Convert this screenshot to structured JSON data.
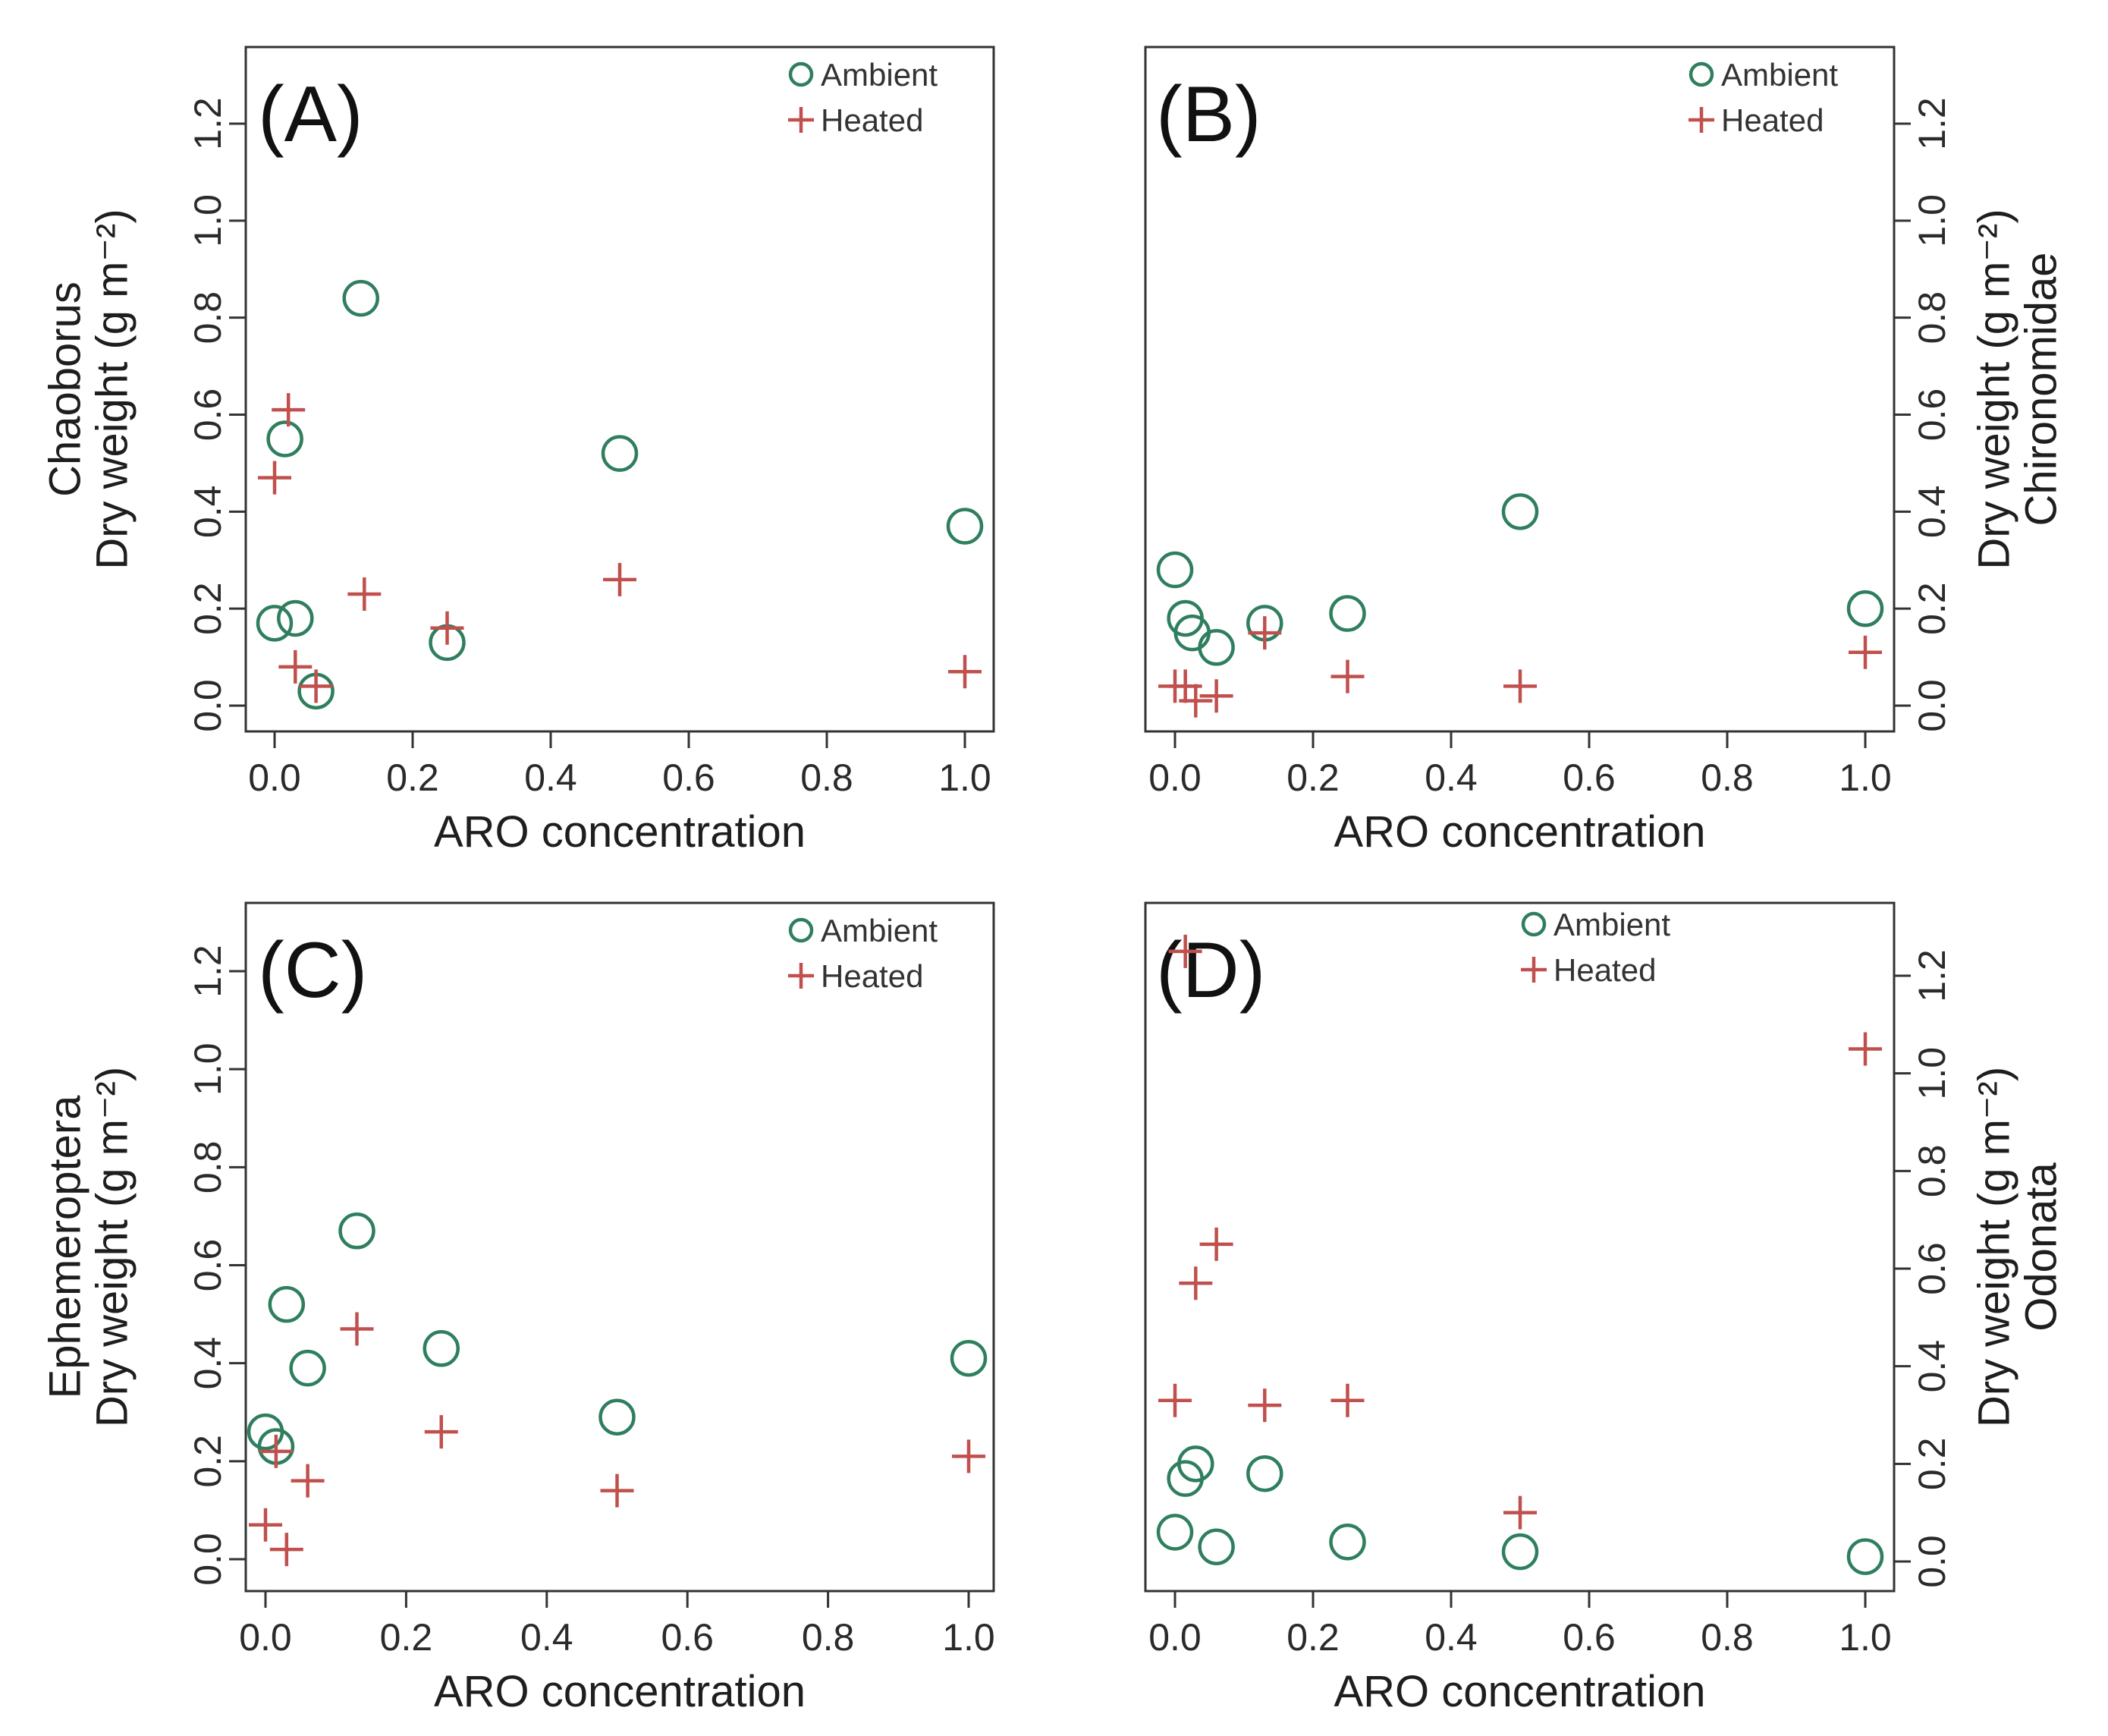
{
  "colors": {
    "ambient": "#2f7f5f",
    "heated": "#c0504d"
  },
  "chart_data": [
    {
      "type": "scatter",
      "panel": "(A)",
      "xlabel": "ARO concentration",
      "ylabel_taxon": "Chaoborus",
      "ylabel": "Dry weight (g m⁻²)",
      "y_axis_side": "left",
      "xlim": [
        0,
        1.0
      ],
      "ylim": [
        0,
        1.2
      ],
      "xticks": [
        "0.0",
        "0.2",
        "0.4",
        "0.6",
        "0.8",
        "1.0"
      ],
      "yticks": [
        "0.0",
        "0.2",
        "0.4",
        "0.6",
        "0.8",
        "1.0",
        "1.2"
      ],
      "legend": {
        "position": "top-right",
        "ambient": "Ambient",
        "heated": "Heated"
      },
      "series": [
        {
          "name": "Ambient",
          "marker": "circle",
          "points": [
            [
              0.0,
              0.17
            ],
            [
              0.015,
              0.55
            ],
            [
              0.03,
              0.18
            ],
            [
              0.06,
              0.03
            ],
            [
              0.125,
              0.84
            ],
            [
              0.25,
              0.13
            ],
            [
              0.5,
              0.52
            ],
            [
              1.0,
              0.37
            ]
          ]
        },
        {
          "name": "Heated",
          "marker": "plus",
          "points": [
            [
              0.0,
              0.47
            ],
            [
              0.02,
              0.61
            ],
            [
              0.03,
              0.08
            ],
            [
              0.06,
              0.04
            ],
            [
              0.13,
              0.23
            ],
            [
              0.25,
              0.16
            ],
            [
              0.5,
              0.26
            ],
            [
              1.0,
              0.07
            ]
          ]
        }
      ]
    },
    {
      "type": "scatter",
      "panel": "(B)",
      "xlabel": "ARO concentration",
      "ylabel_taxon": "Chironomidae",
      "ylabel": "Dry weight (g m⁻²)",
      "y_axis_side": "right",
      "xlim": [
        0,
        1.0
      ],
      "ylim": [
        0,
        1.2
      ],
      "xticks": [
        "0.0",
        "0.2",
        "0.4",
        "0.6",
        "0.8",
        "1.0"
      ],
      "yticks": [
        "0.0",
        "0.2",
        "0.4",
        "0.6",
        "0.8",
        "1.0",
        "1.2"
      ],
      "legend": {
        "position": "top-right",
        "ambient": "Ambient",
        "heated": "Heated"
      },
      "series": [
        {
          "name": "Ambient",
          "marker": "circle",
          "points": [
            [
              0.0,
              0.28
            ],
            [
              0.015,
              0.18
            ],
            [
              0.025,
              0.15
            ],
            [
              0.06,
              0.12
            ],
            [
              0.13,
              0.17
            ],
            [
              0.25,
              0.19
            ],
            [
              0.5,
              0.4
            ],
            [
              1.0,
              0.2
            ]
          ]
        },
        {
          "name": "Heated",
          "marker": "plus",
          "points": [
            [
              0.0,
              0.04
            ],
            [
              0.015,
              0.04
            ],
            [
              0.03,
              0.01
            ],
            [
              0.06,
              0.02
            ],
            [
              0.13,
              0.15
            ],
            [
              0.25,
              0.06
            ],
            [
              0.5,
              0.04
            ],
            [
              1.0,
              0.11
            ]
          ]
        }
      ]
    },
    {
      "type": "scatter",
      "panel": "(C)",
      "xlabel": "ARO concentration",
      "ylabel_taxon": "Ephemeroptera",
      "ylabel": "Dry weight (g m⁻²)",
      "y_axis_side": "left",
      "xlim": [
        0,
        1.0
      ],
      "ylim": [
        0,
        1.2
      ],
      "xticks": [
        "0.0",
        "0.2",
        "0.4",
        "0.6",
        "0.8",
        "1.0"
      ],
      "yticks": [
        "0.0",
        "0.2",
        "0.4",
        "0.6",
        "0.8",
        "1.0",
        "1.2"
      ],
      "legend": {
        "position": "top-right",
        "ambient": "Ambient",
        "heated": "Heated"
      },
      "series": [
        {
          "name": "Ambient",
          "marker": "circle",
          "points": [
            [
              0.0,
              0.26
            ],
            [
              0.015,
              0.23
            ],
            [
              0.03,
              0.52
            ],
            [
              0.06,
              0.39
            ],
            [
              0.13,
              0.67
            ],
            [
              0.25,
              0.43
            ],
            [
              0.5,
              0.29
            ],
            [
              1.0,
              0.41
            ]
          ]
        },
        {
          "name": "Heated",
          "marker": "plus",
          "points": [
            [
              0.0,
              0.07
            ],
            [
              0.015,
              0.22
            ],
            [
              0.03,
              0.02
            ],
            [
              0.06,
              0.16
            ],
            [
              0.13,
              0.47
            ],
            [
              0.25,
              0.26
            ],
            [
              0.5,
              0.14
            ],
            [
              1.0,
              0.21
            ]
          ]
        }
      ]
    },
    {
      "type": "scatter",
      "panel": "(D)",
      "xlabel": "ARO concentration",
      "ylabel_taxon": "Odonata",
      "ylabel": "Dry weight (g m⁻²)",
      "y_axis_side": "right",
      "xlim": [
        0,
        1.0
      ],
      "ylim": [
        0,
        1.2
      ],
      "xticks": [
        "0.0",
        "0.2",
        "0.4",
        "0.6",
        "0.8",
        "1.0"
      ],
      "yticks": [
        "0.0",
        "0.2",
        "0.4",
        "0.6",
        "0.8",
        "1.0",
        "1.2"
      ],
      "legend": {
        "position": "top-center",
        "ambient": "Ambient",
        "heated": "Heated"
      },
      "series": [
        {
          "name": "Ambient",
          "marker": "circle",
          "points": [
            [
              0.0,
              0.06
            ],
            [
              0.015,
              0.17
            ],
            [
              0.03,
              0.2
            ],
            [
              0.06,
              0.03
            ],
            [
              0.13,
              0.18
            ],
            [
              0.25,
              0.04
            ],
            [
              0.5,
              0.02
            ],
            [
              1.0,
              0.01
            ]
          ]
        },
        {
          "name": "Heated",
          "marker": "plus",
          "points": [
            [
              0.0,
              0.33
            ],
            [
              0.015,
              1.25
            ],
            [
              0.03,
              0.57
            ],
            [
              0.06,
              0.65
            ],
            [
              0.13,
              0.32
            ],
            [
              0.25,
              0.33
            ],
            [
              0.5,
              0.1
            ],
            [
              1.0,
              1.05
            ]
          ]
        }
      ]
    }
  ]
}
